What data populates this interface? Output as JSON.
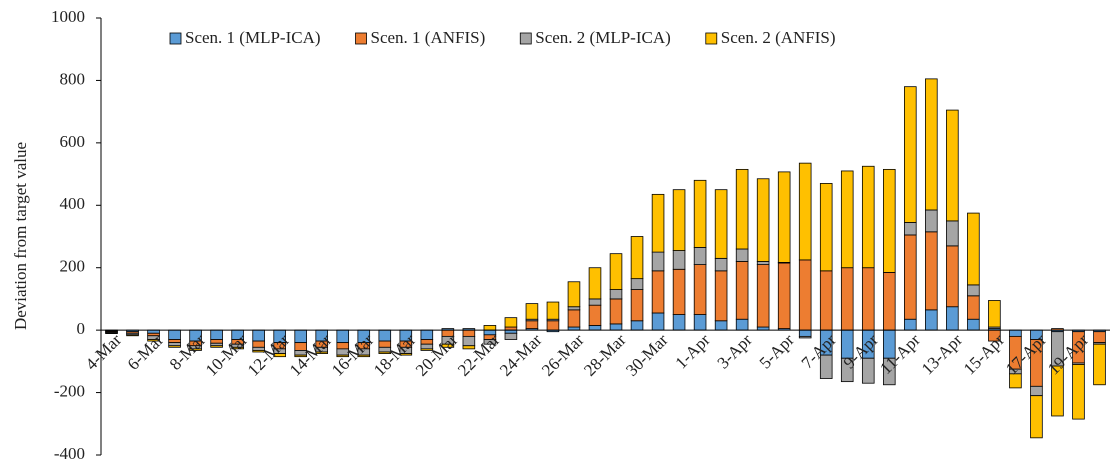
{
  "chart_data": {
    "type": "bar",
    "stacked": true,
    "y_label": "Deviation from target value",
    "categories": [
      "4-Mar",
      null,
      "6-Mar",
      null,
      "8-Mar",
      null,
      "10-Mar",
      null,
      "12-Mar",
      null,
      "14-Mar",
      null,
      "16-Mar",
      null,
      "18-Mar",
      null,
      "20-Mar",
      null,
      "22-Mar",
      null,
      "24-Mar",
      null,
      "26-Mar",
      null,
      "28-Mar",
      null,
      "30-Mar",
      null,
      "1-Apr",
      null,
      "3-Apr",
      null,
      "5-Apr",
      null,
      "7-Apr",
      null,
      "9-Apr",
      null,
      "11-Apr",
      null,
      "13-Apr",
      null,
      "15-Apr",
      null,
      "17-Apr",
      null,
      "19-Apr",
      null
    ],
    "series": [
      {
        "name": "Scen. 1 (MLP-ICA)",
        "color": "#5b9bd5",
        "values": [
          -3,
          -5,
          -10,
          -30,
          -35,
          -30,
          -30,
          -35,
          -40,
          -40,
          -35,
          -40,
          -40,
          -35,
          -35,
          -30,
          5,
          5,
          -15,
          -10,
          5,
          -5,
          10,
          15,
          20,
          30,
          55,
          50,
          50,
          30,
          35,
          10,
          5,
          -20,
          -80,
          -90,
          -90,
          -90,
          35,
          65,
          75,
          35,
          5,
          -20,
          -30,
          -5,
          -5,
          -5
        ]
      },
      {
        "name": "Scen. 1 (ANFIS)",
        "color": "#ed7d31",
        "values": [
          -3,
          -5,
          -8,
          -10,
          -15,
          -12,
          -15,
          -20,
          -20,
          -25,
          -20,
          -20,
          -20,
          -20,
          -20,
          -15,
          -20,
          -20,
          -15,
          10,
          25,
          30,
          55,
          65,
          80,
          100,
          135,
          145,
          160,
          160,
          185,
          200,
          210,
          225,
          190,
          200,
          200,
          185,
          270,
          250,
          195,
          75,
          -35,
          -105,
          -150,
          5,
          -100,
          -35
        ]
      },
      {
        "name": "Scen. 2 (MLP-ICA)",
        "color": "#a5a5a5",
        "values": [
          -3,
          -5,
          -12,
          -10,
          -10,
          -8,
          -10,
          -10,
          -15,
          -15,
          -15,
          -20,
          -20,
          -15,
          -20,
          -15,
          -25,
          -30,
          -15,
          -20,
          5,
          5,
          10,
          20,
          30,
          35,
          60,
          60,
          55,
          40,
          40,
          10,
          2,
          -5,
          -75,
          -75,
          -80,
          -85,
          40,
          70,
          80,
          35,
          5,
          -15,
          -30,
          -110,
          -5,
          -5
        ]
      },
      {
        "name": "Scen. 2 (ANFIS)",
        "color": "#ffc000",
        "values": [
          -2,
          -3,
          -5,
          -5,
          -5,
          -5,
          -5,
          -5,
          -10,
          -5,
          -5,
          -5,
          -5,
          -5,
          -5,
          -5,
          -10,
          -10,
          15,
          30,
          50,
          55,
          80,
          100,
          115,
          135,
          185,
          195,
          215,
          220,
          255,
          265,
          290,
          310,
          280,
          310,
          325,
          330,
          435,
          420,
          355,
          230,
          85,
          -45,
          -135,
          -160,
          -175,
          -130
        ]
      }
    ],
    "ylim": [
      -400,
      1000
    ],
    "yticks": [
      -400,
      -200,
      0,
      200,
      400,
      600,
      800,
      1000
    ],
    "legend": "top"
  }
}
